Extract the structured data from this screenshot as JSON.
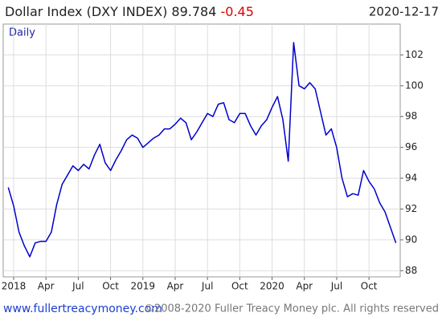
{
  "chart_data": {
    "type": "line",
    "title": "Dollar Index (DXY INDEX)",
    "last": 89.784,
    "change": -0.45,
    "date": "2020-12-17",
    "x": [
      -0.5,
      0,
      0.5,
      1,
      1.5,
      2,
      2.5,
      3,
      3.5,
      4,
      4.5,
      5,
      5.5,
      6,
      6.5,
      7,
      7.5,
      8,
      8.5,
      9,
      9.5,
      10,
      10.5,
      11,
      11.5,
      12,
      12.5,
      13,
      13.5,
      14,
      14.5,
      15,
      15.5,
      16,
      16.5,
      17,
      17.5,
      18,
      18.5,
      19,
      19.5,
      20,
      20.5,
      21,
      21.5,
      22,
      22.5,
      23,
      23.5,
      24,
      24.5,
      25,
      25.5,
      26,
      26.5,
      27,
      27.5,
      28,
      28.5,
      29,
      29.5,
      30,
      30.5,
      31,
      31.5,
      32,
      32.5,
      33,
      33.5,
      34,
      34.5,
      35,
      35.5
    ],
    "series": [
      {
        "name": "Daily",
        "color": "#0000cc",
        "values": [
          93.4,
          92.2,
          90.5,
          89.6,
          88.9,
          89.8,
          89.9,
          89.9,
          90.5,
          92.3,
          93.6,
          94.2,
          94.8,
          94.5,
          94.9,
          94.6,
          95.5,
          96.2,
          95.0,
          94.5,
          95.2,
          95.8,
          96.5,
          96.8,
          96.6,
          96.0,
          96.3,
          96.6,
          96.8,
          97.2,
          97.2,
          97.5,
          97.9,
          97.6,
          96.5,
          97.0,
          97.6,
          98.2,
          98.0,
          98.8,
          98.9,
          97.8,
          97.6,
          98.2,
          98.2,
          97.4,
          96.8,
          97.4,
          97.8,
          98.6,
          99.3,
          97.8,
          95.1,
          102.8,
          100.0,
          99.8,
          100.2,
          99.8,
          98.3,
          96.8,
          97.2,
          96.0,
          94.0,
          92.8,
          93.0,
          92.9,
          94.5,
          93.8,
          93.3,
          92.4,
          91.8,
          90.8,
          89.8
        ]
      }
    ],
    "xlim": [
      -0.97,
      35.9
    ],
    "xticks": [
      {
        "value": 0,
        "label": "2018"
      },
      {
        "value": 3,
        "label": "Apr"
      },
      {
        "value": 6,
        "label": "Jul"
      },
      {
        "value": 9,
        "label": "Oct"
      },
      {
        "value": 12,
        "label": "2019"
      },
      {
        "value": 15,
        "label": "Apr"
      },
      {
        "value": 18,
        "label": "Jul"
      },
      {
        "value": 21,
        "label": "Oct"
      },
      {
        "value": 24,
        "label": "2020"
      },
      {
        "value": 27,
        "label": "Apr"
      },
      {
        "value": 30,
        "label": "Jul"
      },
      {
        "value": 33,
        "label": "Oct"
      }
    ],
    "ylim": [
      87.6,
      104
    ],
    "yticks": [
      88,
      90,
      92,
      94,
      96,
      98,
      100,
      102
    ],
    "grid": true,
    "source": "www.fullertreacymoney.com",
    "copyright": "©2008-2020 Fuller Treacy Money plc. All rights reserved"
  }
}
